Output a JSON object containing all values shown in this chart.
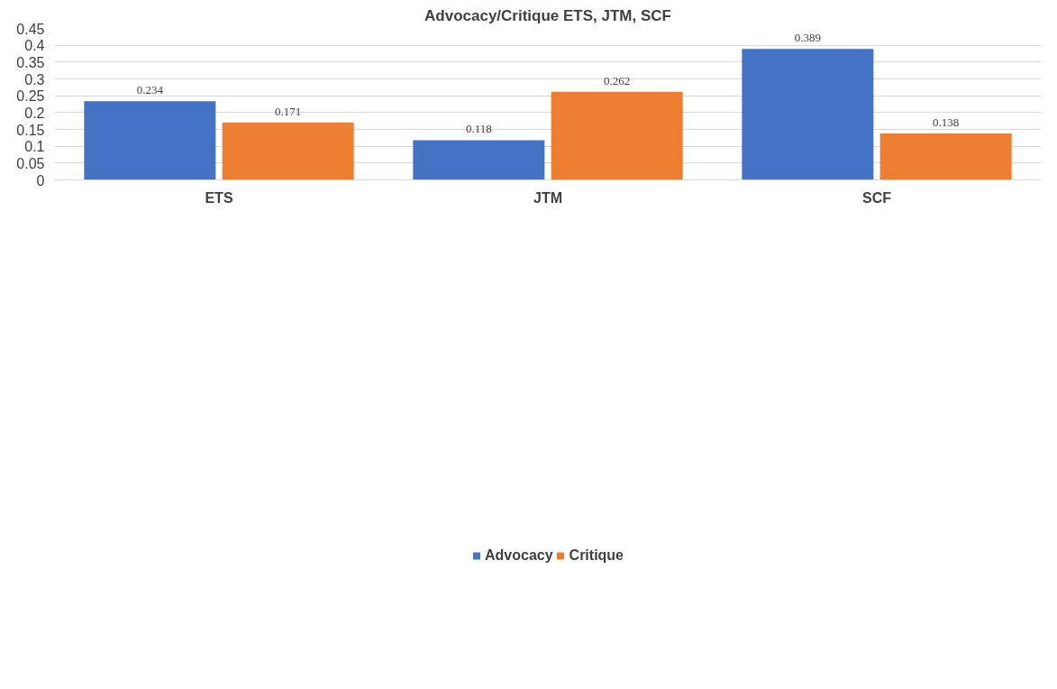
{
  "chart_data": {
    "type": "bar",
    "title": "Advocacy/Critique ETS, JTM, SCF",
    "categories": [
      "ETS",
      "JTM",
      "SCF"
    ],
    "series": [
      {
        "name": "Advocacy",
        "color": "#4472c4",
        "values": [
          0.234,
          0.118,
          0.389
        ]
      },
      {
        "name": "Critique",
        "color": "#ed7d31",
        "values": [
          0.171,
          0.262,
          0.138
        ]
      }
    ],
    "ylim": [
      0,
      0.45
    ],
    "yticks": [
      0,
      0.05,
      0.1,
      0.15,
      0.2,
      0.25,
      0.3,
      0.35,
      0.4,
      0.45
    ],
    "grid": "y",
    "data_labels": true,
    "legend": "bottom"
  }
}
